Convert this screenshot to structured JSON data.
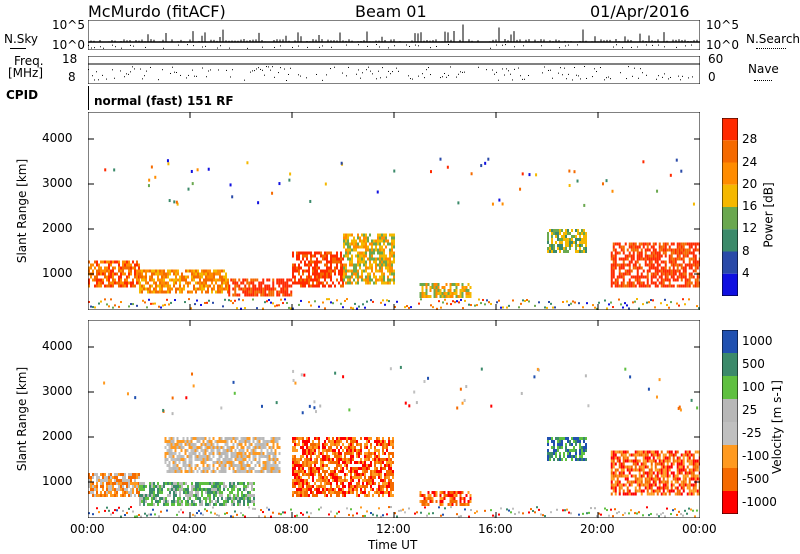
{
  "header": {
    "station": "McMurdo (fitACF)",
    "beam": "Beam 01",
    "date": "01/Apr/2016"
  },
  "noise_panel": {
    "left_label": "N.Sky",
    "right_label": "N.Search",
    "top_tick": "10^5",
    "bottom_tick": "10^0",
    "right_top_tick": "10^5",
    "right_bottom_tick": "10^0"
  },
  "freq_panel": {
    "left_label_line1": "Freq.",
    "left_label_line2": "[MHz]",
    "left_top_tick": "18",
    "left_bottom_tick": "8",
    "right_label": "Nave",
    "right_top_tick": "60",
    "right_bottom_tick": "0"
  },
  "cpid": {
    "label": "CPID",
    "value": "normal (fast) 151 RF"
  },
  "colors": {
    "power": [
      "#1010e0",
      "#2a4aa8",
      "#3b8a6a",
      "#6aa84f",
      "#f5b800",
      "#ff8c00",
      "#f56a00",
      "#ff2a00"
    ],
    "velocity": [
      "#ff0000",
      "#f56a00",
      "#ff9a20",
      "#c0c0c0",
      "#b8b8b8",
      "#5fc040",
      "#3b8a6a",
      "#2050b0"
    ]
  },
  "chart_data": [
    {
      "type": "heatmap",
      "ylabel": "Slant Range [km]",
      "ylim": [
        200,
        4600
      ],
      "xlim": [
        0,
        24
      ],
      "y_ticks": [
        1000,
        2000,
        3000,
        4000
      ],
      "x_ticks": [
        0,
        4,
        8,
        12,
        16,
        20,
        24
      ],
      "colorbar": {
        "label": "Power [dB]",
        "ticks": [
          "4",
          "8",
          "12",
          "16",
          "20",
          "24",
          "28"
        ]
      },
      "regions": [
        {
          "t_start": 0.0,
          "t_end": 2.0,
          "r_min": 700,
          "r_max": 1300,
          "level": 6
        },
        {
          "t_start": 2.0,
          "t_end": 5.5,
          "r_min": 600,
          "r_max": 1100,
          "level": 5
        },
        {
          "t_start": 5.5,
          "t_end": 8.0,
          "r_min": 500,
          "r_max": 900,
          "level": 7
        },
        {
          "t_start": 8.0,
          "t_end": 10.0,
          "r_min": 700,
          "r_max": 1500,
          "level": 7
        },
        {
          "t_start": 10.0,
          "t_end": 12.0,
          "r_min": 800,
          "r_max": 1900,
          "level": 4
        },
        {
          "t_start": 13.0,
          "t_end": 15.0,
          "r_min": 500,
          "r_max": 800,
          "level": 4
        },
        {
          "t_start": 18.0,
          "t_end": 19.5,
          "r_min": 1500,
          "r_max": 2000,
          "level": 3
        },
        {
          "t_start": 20.5,
          "t_end": 24.0,
          "r_min": 700,
          "r_max": 1700,
          "level": 7
        }
      ]
    },
    {
      "type": "heatmap",
      "ylabel": "Slant Range [km]",
      "ylim": [
        200,
        4600
      ],
      "xlim": [
        0,
        24
      ],
      "y_ticks": [
        1000,
        2000,
        3000,
        4000
      ],
      "x_ticks": [
        0,
        4,
        8,
        12,
        16,
        20,
        24
      ],
      "x_tick_labels": [
        "00:00",
        "04:00",
        "08:00",
        "12:00",
        "16:00",
        "20:00",
        "00:00"
      ],
      "xlabel": "Time UT",
      "colorbar": {
        "label": "Velocity [m s-1]",
        "ticks": [
          "1000",
          "500",
          "100",
          "25",
          "-25",
          "-100",
          "-500",
          "-1000"
        ]
      },
      "regions": [
        {
          "t_start": 0.0,
          "t_end": 2.0,
          "r_min": 700,
          "r_max": 1200,
          "level": 2
        },
        {
          "t_start": 2.0,
          "t_end": 6.5,
          "r_min": 500,
          "r_max": 1000,
          "level": 5
        },
        {
          "t_start": 3.0,
          "t_end": 7.5,
          "r_min": 1200,
          "r_max": 2000,
          "level": 3
        },
        {
          "t_start": 8.0,
          "t_end": 12.0,
          "r_min": 700,
          "r_max": 2000,
          "level": 1
        },
        {
          "t_start": 13.0,
          "t_end": 15.0,
          "r_min": 500,
          "r_max": 800,
          "level": 1
        },
        {
          "t_start": 18.0,
          "t_end": 19.5,
          "r_min": 1500,
          "r_max": 2000,
          "level": 6
        },
        {
          "t_start": 20.5,
          "t_end": 24.0,
          "r_min": 700,
          "r_max": 1700,
          "level": 1
        }
      ]
    }
  ]
}
